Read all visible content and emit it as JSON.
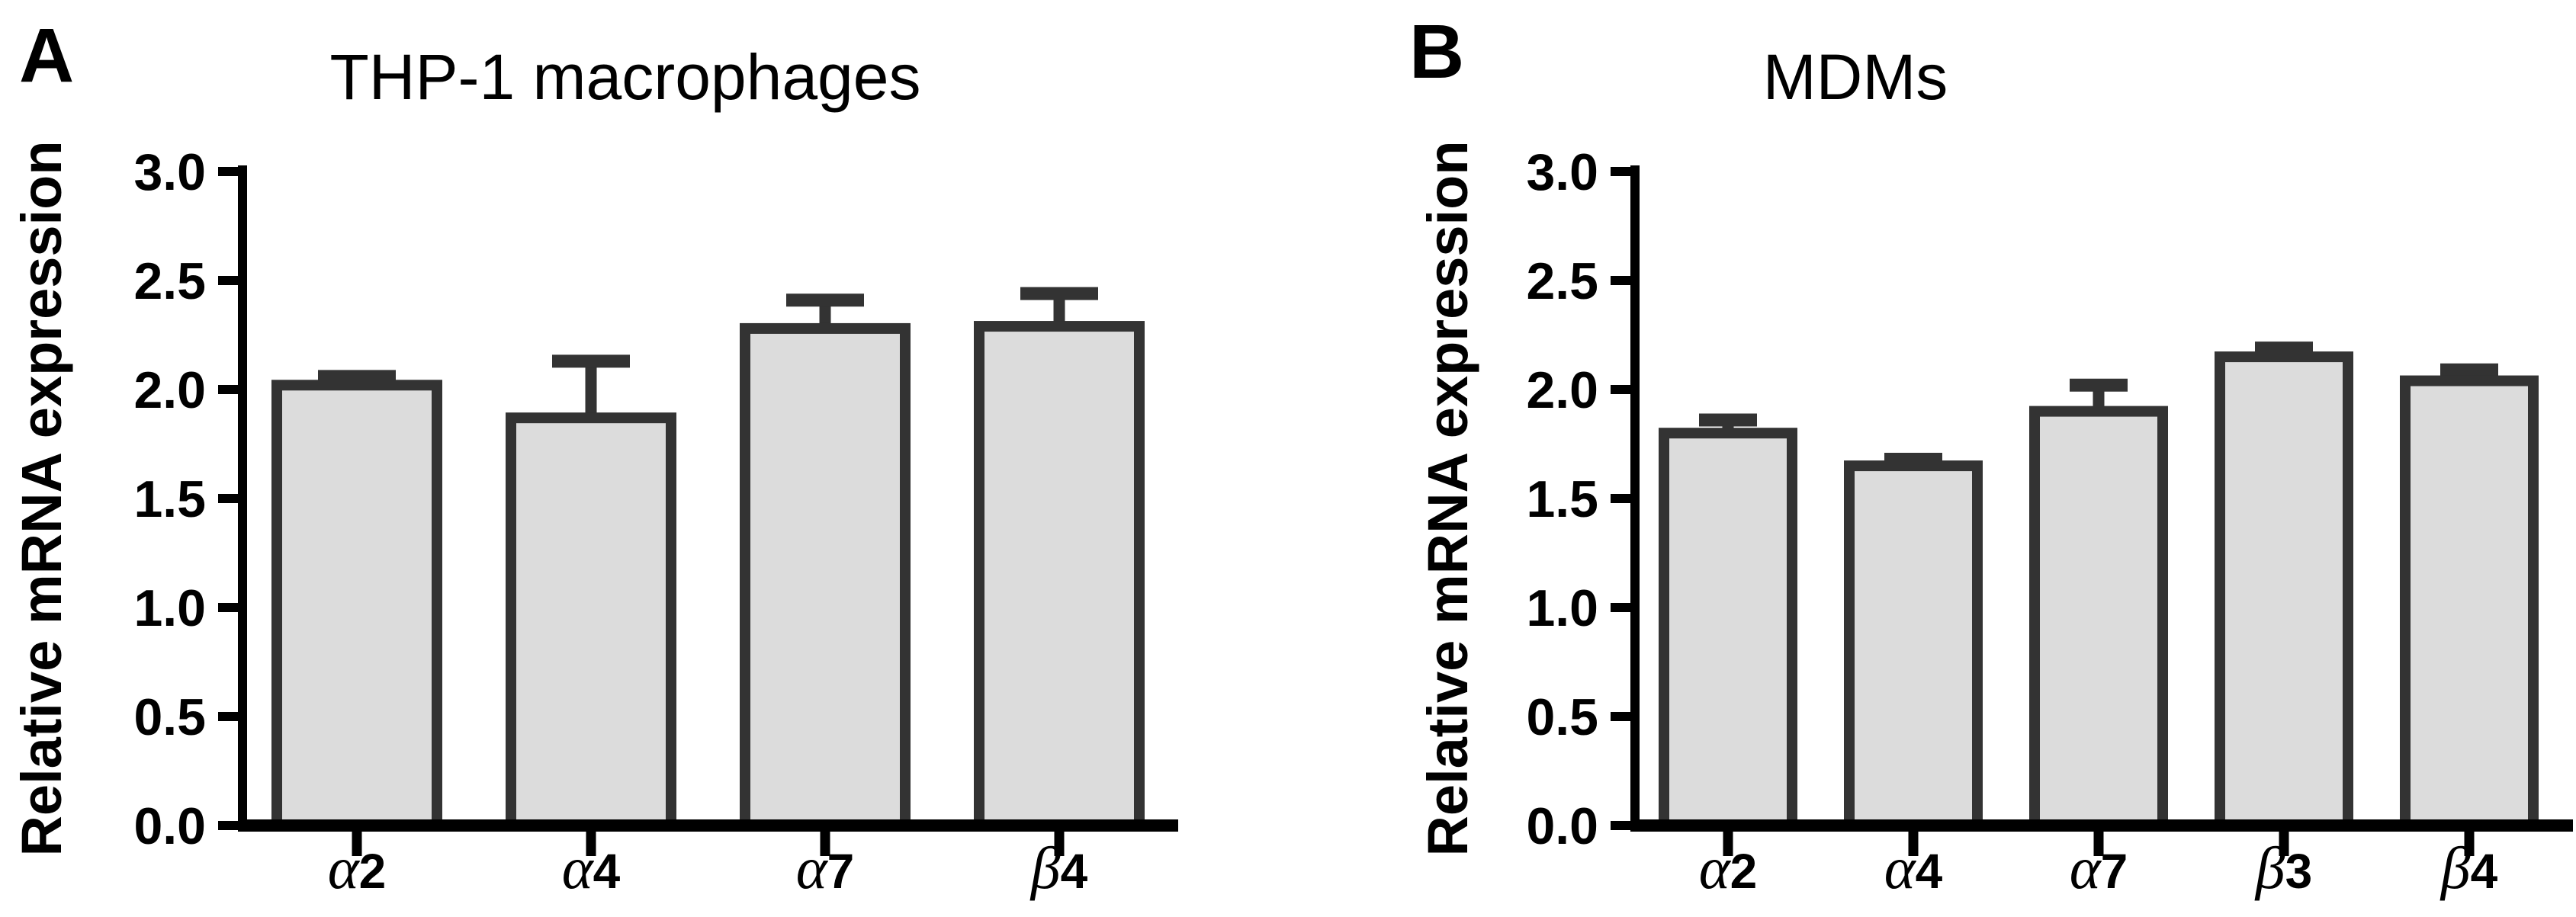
{
  "figure": {
    "background": "#ffffff",
    "panels": [
      {
        "label": "A",
        "title": "THP-1 macrophages"
      },
      {
        "label": "B",
        "title": "MDMs"
      }
    ]
  },
  "chart_data": [
    {
      "type": "bar",
      "panel": "A",
      "title": "THP-1 macrophages",
      "xlabel": "",
      "ylabel": "Relative mRNA expression",
      "categories": [
        "α2",
        "α4",
        "α7",
        "β4"
      ],
      "values": [
        2.02,
        1.87,
        2.28,
        2.29
      ],
      "errors": [
        0.04,
        0.26,
        0.13,
        0.15
      ],
      "error_direction": "up",
      "ylim": [
        0,
        3.0
      ],
      "yticks": [
        0.0,
        0.5,
        1.0,
        1.5,
        2.0,
        2.5,
        3.0
      ],
      "grid": false,
      "legend": null,
      "bar_fill": "#dcdcdc",
      "bar_stroke": "#333333",
      "error_color": "#333333",
      "axis_color": "#000000"
    },
    {
      "type": "bar",
      "panel": "B",
      "title": "MDMs",
      "xlabel": "",
      "ylabel": "Relative mRNA expression",
      "categories": [
        "α2",
        "α4",
        "α7",
        "β3",
        "β4"
      ],
      "values": [
        1.8,
        1.65,
        1.9,
        2.15,
        2.04
      ],
      "errors": [
        0.06,
        0.03,
        0.12,
        0.04,
        0.05
      ],
      "error_direction": "up",
      "ylim": [
        0,
        3.0
      ],
      "yticks": [
        0.0,
        0.5,
        1.0,
        1.5,
        2.0,
        2.5,
        3.0
      ],
      "grid": false,
      "legend": null,
      "bar_fill": "#dcdcdc",
      "bar_stroke": "#333333",
      "error_color": "#333333",
      "axis_color": "#000000"
    }
  ]
}
